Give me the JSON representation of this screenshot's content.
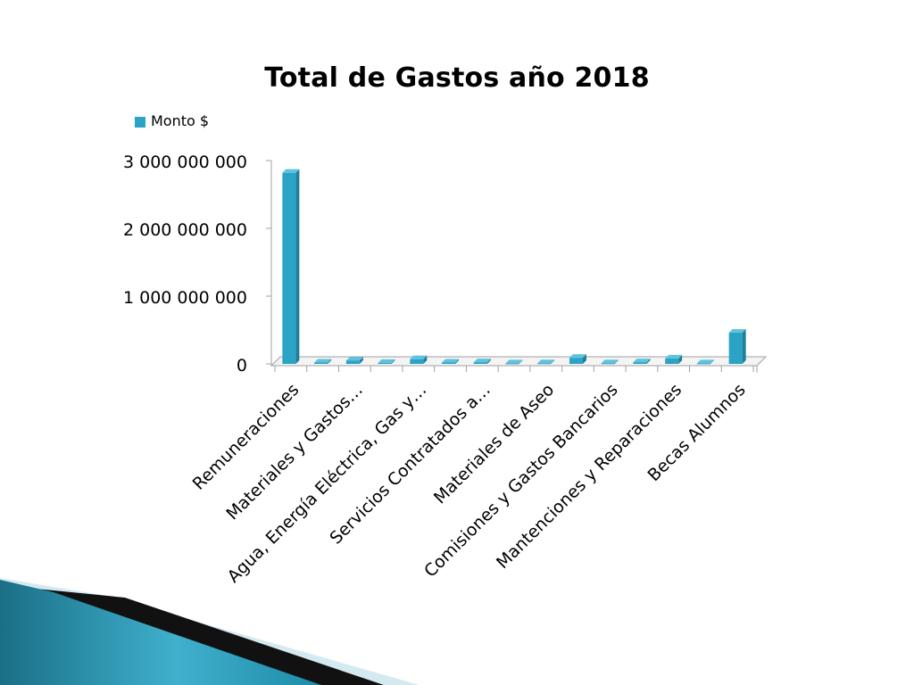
{
  "chart_data": {
    "type": "bar",
    "title": "Total de Gastos año 2018",
    "xlabel": "",
    "ylabel": "",
    "legend": {
      "position": "top-left",
      "entries": [
        "Monto $"
      ]
    },
    "series": [
      {
        "name": "Monto $",
        "color": "#2BA3C4",
        "values": [
          2820000000,
          20000000,
          50000000,
          15000000,
          70000000,
          20000000,
          25000000,
          8000000,
          10000000,
          90000000,
          10000000,
          25000000,
          80000000,
          8000000,
          460000000
        ]
      }
    ],
    "categories": [
      "Remuneraciones",
      "",
      "Materiales y Gastos…",
      "",
      "Agua, Energía Eléctrica, Gas y…",
      "",
      "Servicios Contratados a…",
      "",
      "Materiales de Aseo",
      "",
      "Comisiones y Gastos Bancarios",
      "",
      "Mantenciones y Reparaciones",
      "",
      "Becas Alumnos"
    ],
    "ylim": [
      0,
      3000000000
    ],
    "yticks": [
      "0",
      "1 000 000 000",
      "2 000 000 000",
      "3 000 000 000"
    ],
    "ytick_values": [
      0,
      1000000000,
      2000000000,
      3000000000
    ],
    "grid": false,
    "style": "3d-column"
  },
  "colors": {
    "bar": "#2BA3C4",
    "bar_dark": "#1D7F9A",
    "bar_top": "#5FC3DD",
    "axis": "#A0A0A0",
    "decor_teal": "#1F7E97",
    "decor_light": "#D4EAF1",
    "decor_dark": "#111111"
  }
}
